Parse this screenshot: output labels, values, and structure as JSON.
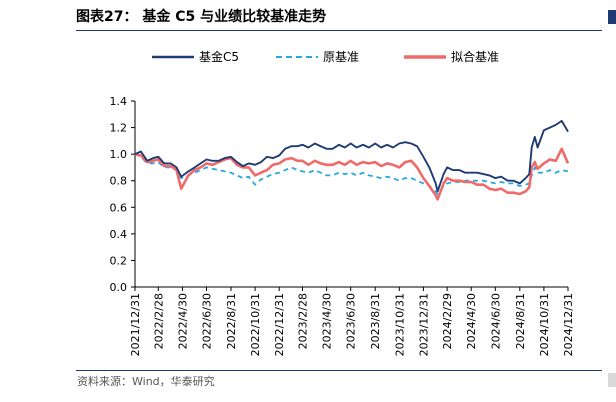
{
  "title": "图表27：  基金 C5 与业绩比较基准走势",
  "source": "资料来源：Wind，华泰研究",
  "chart_data": {
    "type": "line",
    "ylim": [
      0.0,
      1.4
    ],
    "yticks": [
      "0.0",
      "0.2",
      "0.4",
      "0.6",
      "0.8",
      "1.0",
      "1.2",
      "1.4"
    ],
    "xlim": [
      "2021-12-31",
      "2024-12-31"
    ],
    "xticks": [
      "2021/12/31",
      "2022/2/28",
      "2022/4/30",
      "2022/6/30",
      "2022/8/31",
      "2022/10/31",
      "2022/12/31",
      "2023/2/28",
      "2023/4/30",
      "2023/6/30",
      "2023/8/31",
      "2023/10/31",
      "2023/12/31",
      "2024/2/29",
      "2024/4/30",
      "2024/6/30",
      "2024/8/31",
      "2024/10/31",
      "2024/12/31"
    ],
    "legend_position": "top",
    "series": [
      {
        "name": "基金C5",
        "color": "#1f3b73",
        "style": "solid",
        "x": [
          "2021-12-31",
          "2022-01-15",
          "2022-01-31",
          "2022-02-15",
          "2022-02-28",
          "2022-03-15",
          "2022-03-31",
          "2022-04-15",
          "2022-04-27",
          "2022-05-15",
          "2022-05-31",
          "2022-06-15",
          "2022-06-30",
          "2022-07-15",
          "2022-07-31",
          "2022-08-15",
          "2022-08-31",
          "2022-09-15",
          "2022-09-30",
          "2022-10-15",
          "2022-10-31",
          "2022-11-15",
          "2022-11-30",
          "2022-12-15",
          "2022-12-31",
          "2023-01-15",
          "2023-01-31",
          "2023-02-15",
          "2023-02-28",
          "2023-03-15",
          "2023-03-31",
          "2023-04-15",
          "2023-04-30",
          "2023-05-15",
          "2023-05-31",
          "2023-06-15",
          "2023-06-30",
          "2023-07-15",
          "2023-07-31",
          "2023-08-15",
          "2023-08-31",
          "2023-09-15",
          "2023-09-30",
          "2023-10-15",
          "2023-10-31",
          "2023-11-15",
          "2023-11-30",
          "2023-12-15",
          "2023-12-31",
          "2024-01-15",
          "2024-01-31",
          "2024-02-05",
          "2024-02-20",
          "2024-02-29",
          "2024-03-15",
          "2024-03-31",
          "2024-04-15",
          "2024-04-30",
          "2024-05-15",
          "2024-05-31",
          "2024-06-15",
          "2024-06-30",
          "2024-07-15",
          "2024-07-31",
          "2024-08-15",
          "2024-08-31",
          "2024-09-15",
          "2024-09-24",
          "2024-09-30",
          "2024-10-08",
          "2024-10-15",
          "2024-10-31",
          "2024-11-15",
          "2024-11-30",
          "2024-12-15",
          "2024-12-31"
        ],
        "y": [
          1.0,
          1.02,
          0.95,
          0.97,
          0.98,
          0.93,
          0.93,
          0.9,
          0.83,
          0.87,
          0.9,
          0.93,
          0.96,
          0.95,
          0.95,
          0.97,
          0.98,
          0.94,
          0.91,
          0.93,
          0.92,
          0.94,
          0.98,
          0.97,
          0.99,
          1.04,
          1.06,
          1.06,
          1.07,
          1.05,
          1.08,
          1.06,
          1.04,
          1.04,
          1.07,
          1.05,
          1.08,
          1.05,
          1.07,
          1.05,
          1.08,
          1.05,
          1.07,
          1.05,
          1.08,
          1.09,
          1.08,
          1.06,
          0.98,
          0.9,
          0.78,
          0.72,
          0.85,
          0.9,
          0.88,
          0.88,
          0.86,
          0.86,
          0.86,
          0.85,
          0.84,
          0.82,
          0.83,
          0.8,
          0.8,
          0.78,
          0.82,
          0.85,
          1.05,
          1.13,
          1.05,
          1.18,
          1.2,
          1.22,
          1.25,
          1.17
        ]
      },
      {
        "name": "原基准",
        "color": "#29a8e0",
        "style": "dashed",
        "x": [
          "2021-12-31",
          "2022-01-15",
          "2022-01-31",
          "2022-02-15",
          "2022-02-28",
          "2022-03-15",
          "2022-03-31",
          "2022-04-15",
          "2022-04-27",
          "2022-05-15",
          "2022-05-31",
          "2022-06-15",
          "2022-06-30",
          "2022-07-15",
          "2022-07-31",
          "2022-08-15",
          "2022-08-31",
          "2022-09-15",
          "2022-09-30",
          "2022-10-15",
          "2022-10-31",
          "2022-11-15",
          "2022-11-30",
          "2022-12-15",
          "2022-12-31",
          "2023-01-15",
          "2023-01-31",
          "2023-02-15",
          "2023-02-28",
          "2023-03-15",
          "2023-03-31",
          "2023-04-15",
          "2023-04-30",
          "2023-05-15",
          "2023-05-31",
          "2023-06-15",
          "2023-06-30",
          "2023-07-15",
          "2023-07-31",
          "2023-08-15",
          "2023-08-31",
          "2023-09-15",
          "2023-09-30",
          "2023-10-15",
          "2023-10-31",
          "2023-11-15",
          "2023-11-30",
          "2023-12-15",
          "2023-12-31",
          "2024-01-15",
          "2024-01-31",
          "2024-02-05",
          "2024-02-20",
          "2024-02-29",
          "2024-03-15",
          "2024-03-31",
          "2024-04-15",
          "2024-04-30",
          "2024-05-15",
          "2024-05-31",
          "2024-06-15",
          "2024-06-30",
          "2024-07-15",
          "2024-07-31",
          "2024-08-15",
          "2024-08-31",
          "2024-09-15",
          "2024-09-24",
          "2024-09-30",
          "2024-10-08",
          "2024-10-15",
          "2024-10-31",
          "2024-11-15",
          "2024-11-30",
          "2024-12-15",
          "2024-12-31"
        ],
        "y": [
          1.0,
          0.98,
          0.93,
          0.93,
          0.94,
          0.9,
          0.9,
          0.88,
          0.82,
          0.84,
          0.86,
          0.88,
          0.9,
          0.89,
          0.88,
          0.87,
          0.86,
          0.84,
          0.82,
          0.83,
          0.77,
          0.81,
          0.83,
          0.85,
          0.86,
          0.88,
          0.9,
          0.88,
          0.87,
          0.86,
          0.88,
          0.86,
          0.84,
          0.84,
          0.86,
          0.85,
          0.86,
          0.84,
          0.86,
          0.84,
          0.83,
          0.82,
          0.83,
          0.82,
          0.8,
          0.82,
          0.82,
          0.8,
          0.78,
          0.76,
          0.72,
          0.7,
          0.76,
          0.78,
          0.79,
          0.79,
          0.8,
          0.8,
          0.8,
          0.8,
          0.79,
          0.78,
          0.79,
          0.78,
          0.78,
          0.76,
          0.77,
          0.78,
          0.84,
          0.9,
          0.86,
          0.86,
          0.88,
          0.86,
          0.88,
          0.87
        ]
      },
      {
        "name": "拟合基准",
        "color": "#f06a6a",
        "style": "solid",
        "x": [
          "2021-12-31",
          "2022-01-15",
          "2022-01-31",
          "2022-02-15",
          "2022-02-28",
          "2022-03-15",
          "2022-03-31",
          "2022-04-15",
          "2022-04-27",
          "2022-05-15",
          "2022-05-31",
          "2022-06-15",
          "2022-06-30",
          "2022-07-15",
          "2022-07-31",
          "2022-08-15",
          "2022-08-31",
          "2022-09-15",
          "2022-09-30",
          "2022-10-15",
          "2022-10-31",
          "2022-11-15",
          "2022-11-30",
          "2022-12-15",
          "2022-12-31",
          "2023-01-15",
          "2023-01-31",
          "2023-02-15",
          "2023-02-28",
          "2023-03-15",
          "2023-03-31",
          "2023-04-15",
          "2023-04-30",
          "2023-05-15",
          "2023-05-31",
          "2023-06-15",
          "2023-06-30",
          "2023-07-15",
          "2023-07-31",
          "2023-08-15",
          "2023-08-31",
          "2023-09-15",
          "2023-09-30",
          "2023-10-15",
          "2023-10-31",
          "2023-11-15",
          "2023-11-30",
          "2023-12-15",
          "2023-12-31",
          "2024-01-15",
          "2024-01-31",
          "2024-02-05",
          "2024-02-20",
          "2024-02-29",
          "2024-03-15",
          "2024-03-31",
          "2024-04-15",
          "2024-04-30",
          "2024-05-15",
          "2024-05-31",
          "2024-06-15",
          "2024-06-30",
          "2024-07-15",
          "2024-07-31",
          "2024-08-15",
          "2024-08-31",
          "2024-09-15",
          "2024-09-24",
          "2024-09-30",
          "2024-10-08",
          "2024-10-15",
          "2024-10-31",
          "2024-11-15",
          "2024-11-30",
          "2024-12-15",
          "2024-12-31"
        ],
        "y": [
          1.0,
          0.99,
          0.94,
          0.95,
          0.96,
          0.91,
          0.91,
          0.88,
          0.74,
          0.84,
          0.88,
          0.9,
          0.93,
          0.92,
          0.94,
          0.96,
          0.97,
          0.92,
          0.9,
          0.9,
          0.84,
          0.86,
          0.88,
          0.92,
          0.93,
          0.96,
          0.97,
          0.95,
          0.95,
          0.92,
          0.95,
          0.93,
          0.92,
          0.92,
          0.94,
          0.92,
          0.95,
          0.92,
          0.94,
          0.93,
          0.94,
          0.91,
          0.93,
          0.92,
          0.9,
          0.94,
          0.95,
          0.9,
          0.82,
          0.76,
          0.69,
          0.66,
          0.78,
          0.82,
          0.8,
          0.8,
          0.79,
          0.79,
          0.77,
          0.77,
          0.74,
          0.73,
          0.74,
          0.71,
          0.71,
          0.7,
          0.72,
          0.75,
          0.9,
          0.94,
          0.89,
          0.93,
          0.96,
          0.95,
          1.04,
          0.93
        ]
      }
    ]
  }
}
